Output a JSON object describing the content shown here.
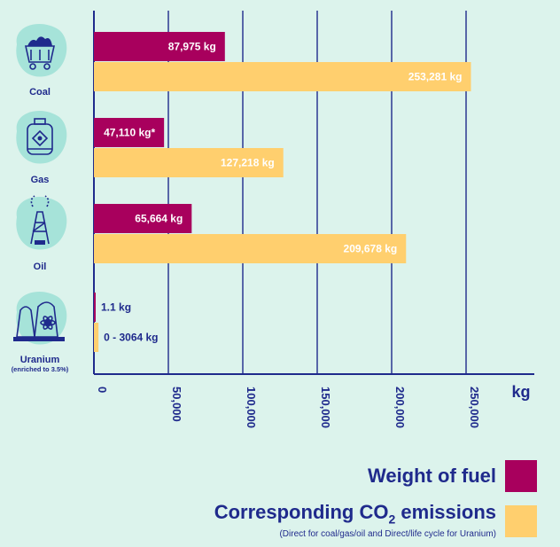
{
  "chart_data": {
    "type": "bar",
    "orientation": "horizontal",
    "categories": [
      "Coal",
      "Gas",
      "Oil",
      "Uranium"
    ],
    "category_notes": [
      "",
      "",
      "",
      "(enriched to 3.5%)"
    ],
    "category_icons": [
      "coal-cart-icon",
      "gas-cylinder-icon",
      "oil-rig-icon",
      "nuclear-plant-icon"
    ],
    "series": [
      {
        "name": "Weight of fuel",
        "color": "#a8005d",
        "values": [
          87975,
          47110,
          65664,
          1.1
        ],
        "labels": [
          "87,975 kg",
          "47,110 kg*",
          "65,664 kg",
          "1.1 kg"
        ]
      },
      {
        "name": "Corresponding CO2 emissions",
        "color": "#ffcf6e",
        "values": [
          253281,
          127218,
          209678,
          3064
        ],
        "labels": [
          "253,281 kg",
          "127,218 kg",
          "209,678 kg",
          "0 - 3064 kg"
        ]
      }
    ],
    "x_ticks": [
      "0",
      "50,000",
      "100,000",
      "150,000",
      "200,000",
      "250,000"
    ],
    "xlim": [
      0,
      300000
    ],
    "x_unit": "kg",
    "grid": true
  },
  "legend": {
    "fuel_label": "Weight of fuel",
    "co2_label_main": "Corresponding CO",
    "co2_label_sub": "2",
    "co2_label_end": " emissions",
    "co2_note": "(Direct for coal/gas/oil and Direct/life cycle for Uranium)"
  },
  "colors": {
    "background": "#dcf3ec",
    "navy": "#1f2a8c",
    "icon_bg": "#a6e3d9",
    "label_on_fuel": "#ffffff",
    "label_on_co2": "#ffffff"
  }
}
